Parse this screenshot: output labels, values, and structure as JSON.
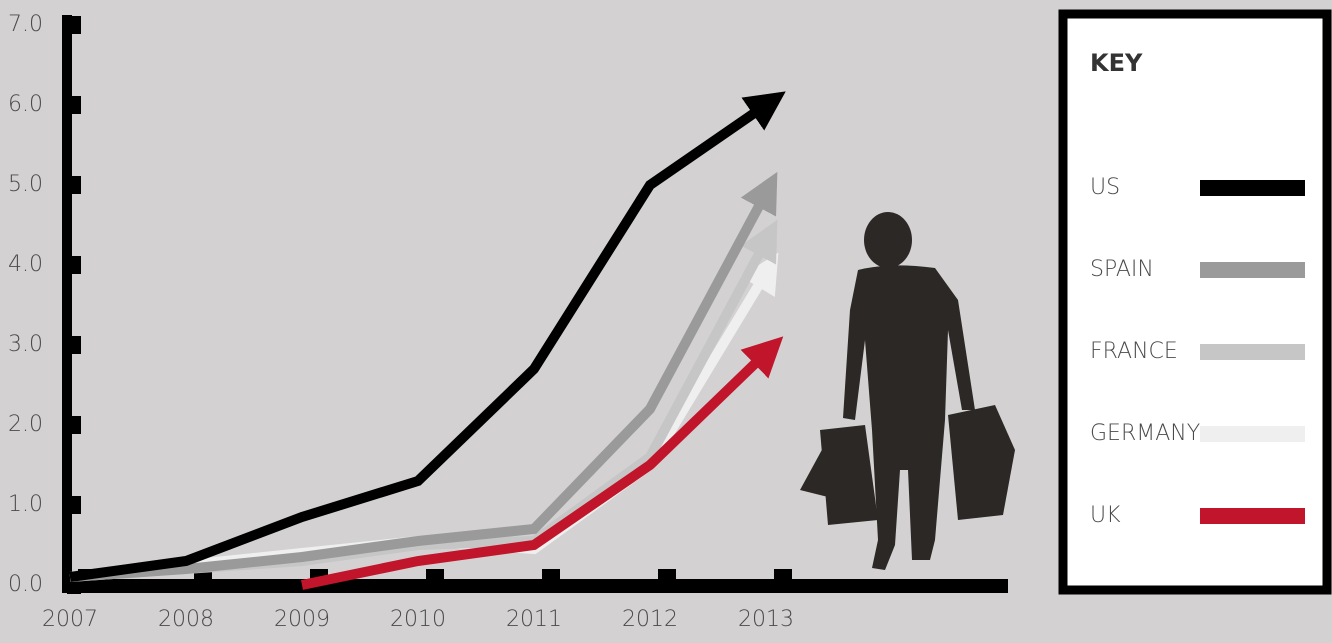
{
  "chart_data": {
    "type": "line",
    "categories": [
      "2007",
      "2008",
      "2009",
      "2010",
      "2011",
      "2012",
      "2013"
    ],
    "series": [
      {
        "name": "US",
        "color": "#000000",
        "values": [
          0.1,
          0.3,
          0.85,
          1.3,
          2.7,
          5.0,
          6.0
        ]
      },
      {
        "name": "SPAIN",
        "color": "#9a9a9a",
        "values": [
          0.1,
          0.2,
          0.35,
          0.55,
          0.7,
          2.2,
          4.9
        ]
      },
      {
        "name": "FRANCE",
        "color": "#c6c6c6",
        "values": [
          0.1,
          0.2,
          0.3,
          0.5,
          0.55,
          1.6,
          4.3
        ]
      },
      {
        "name": "GERMANY",
        "color": "#efefef",
        "values": [
          0.1,
          0.25,
          0.4,
          0.55,
          0.45,
          1.5,
          3.9
        ]
      },
      {
        "name": "UK",
        "color": "#c0152a",
        "values": [
          null,
          null,
          0.0,
          0.3,
          0.5,
          1.5,
          2.9
        ]
      }
    ],
    "ylim": [
      0,
      7
    ],
    "yticks": [
      {
        "value": 0,
        "label": "0.0"
      },
      {
        "value": 1,
        "label": "1.0"
      },
      {
        "value": 2,
        "label": "2.0"
      },
      {
        "value": 3,
        "label": "3.0"
      },
      {
        "value": 4,
        "label": "4.0"
      },
      {
        "value": 5,
        "label": "5.0"
      },
      {
        "value": 6,
        "label": "6.0"
      },
      {
        "value": 7,
        "label": "7.0"
      }
    ],
    "legend_title": "KEY",
    "legend": "right"
  }
}
